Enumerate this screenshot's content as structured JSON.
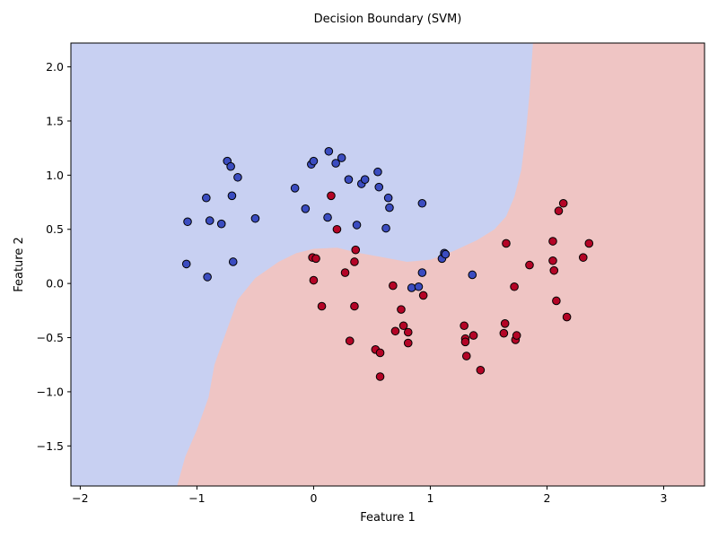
{
  "chart_data": {
    "type": "scatter",
    "title": "Decision Boundary (SVM)",
    "xlabel": "Feature 1",
    "ylabel": "Feature 2",
    "xlim": [
      -2.08,
      3.35
    ],
    "ylim": [
      -1.87,
      2.22
    ],
    "xticks": [
      -2,
      -1,
      0,
      1,
      2,
      3
    ],
    "yticks": [
      -1.5,
      -1.0,
      -0.5,
      0.0,
      0.5,
      1.0,
      1.5,
      2.0
    ],
    "xtick_labels": [
      "−2",
      "−1",
      "0",
      "1",
      "2",
      "3"
    ],
    "ytick_labels": [
      "−1.5",
      "−1.0",
      "−0.5",
      "0.0",
      "0.5",
      "1.0",
      "1.5",
      "2.0"
    ],
    "grid": false,
    "colors": {
      "class0_region": "#c8d0f2",
      "class1_region": "#efc5c4",
      "class0_point": "#3b4cc0",
      "class1_point": "#b40426",
      "edge": "#000000"
    },
    "decision_boundary": [
      [
        -1.17,
        -1.87
      ],
      [
        -1.1,
        -1.6
      ],
      [
        -1.0,
        -1.35
      ],
      [
        -0.9,
        -1.05
      ],
      [
        -0.85,
        -0.75
      ],
      [
        -0.75,
        -0.45
      ],
      [
        -0.65,
        -0.15
      ],
      [
        -0.5,
        0.05
      ],
      [
        -0.3,
        0.2
      ],
      [
        -0.15,
        0.28
      ],
      [
        0.0,
        0.32
      ],
      [
        0.2,
        0.33
      ],
      [
        0.4,
        0.28
      ],
      [
        0.6,
        0.24
      ],
      [
        0.8,
        0.2
      ],
      [
        1.0,
        0.22
      ],
      [
        1.2,
        0.3
      ],
      [
        1.4,
        0.4
      ],
      [
        1.55,
        0.5
      ],
      [
        1.65,
        0.62
      ],
      [
        1.72,
        0.8
      ],
      [
        1.78,
        1.05
      ],
      [
        1.82,
        1.4
      ],
      [
        1.85,
        1.75
      ],
      [
        1.88,
        2.22
      ]
    ],
    "series": [
      {
        "class": 0,
        "points": [
          [
            -1.08,
            0.57
          ],
          [
            -1.09,
            0.18
          ],
          [
            -0.92,
            0.79
          ],
          [
            -0.89,
            0.58
          ],
          [
            -0.91,
            0.06
          ],
          [
            -0.79,
            0.55
          ],
          [
            -0.74,
            1.13
          ],
          [
            -0.71,
            1.08
          ],
          [
            -0.7,
            0.81
          ],
          [
            -0.69,
            0.2
          ],
          [
            -0.65,
            0.98
          ],
          [
            -0.5,
            0.6
          ],
          [
            -0.16,
            0.88
          ],
          [
            -0.07,
            0.69
          ],
          [
            -0.02,
            1.1
          ],
          [
            0.0,
            1.13
          ],
          [
            0.13,
            1.22
          ],
          [
            0.19,
            1.11
          ],
          [
            0.24,
            1.16
          ],
          [
            0.12,
            0.61
          ],
          [
            0.3,
            0.96
          ],
          [
            0.37,
            0.54
          ],
          [
            0.41,
            0.92
          ],
          [
            0.44,
            0.96
          ],
          [
            0.55,
            1.03
          ],
          [
            0.56,
            0.89
          ],
          [
            0.64,
            0.79
          ],
          [
            0.65,
            0.7
          ],
          [
            0.62,
            0.51
          ],
          [
            0.93,
            0.74
          ],
          [
            1.1,
            0.23
          ],
          [
            1.12,
            0.28
          ],
          [
            1.13,
            0.27
          ],
          [
            0.93,
            0.1
          ],
          [
            0.84,
            -0.04
          ],
          [
            0.9,
            -0.03
          ],
          [
            1.36,
            0.08
          ]
        ]
      },
      {
        "class": 1,
        "points": [
          [
            0.15,
            0.81
          ],
          [
            0.2,
            0.5
          ],
          [
            -0.01,
            0.24
          ],
          [
            0.02,
            0.23
          ],
          [
            0.0,
            0.03
          ],
          [
            0.27,
            0.1
          ],
          [
            0.35,
            0.2
          ],
          [
            0.36,
            0.31
          ],
          [
            0.07,
            -0.21
          ],
          [
            0.35,
            -0.21
          ],
          [
            0.68,
            -0.02
          ],
          [
            0.75,
            -0.24
          ],
          [
            0.77,
            -0.39
          ],
          [
            0.81,
            -0.45
          ],
          [
            0.7,
            -0.44
          ],
          [
            0.81,
            -0.55
          ],
          [
            0.31,
            -0.53
          ],
          [
            0.53,
            -0.61
          ],
          [
            0.57,
            -0.64
          ],
          [
            0.57,
            -0.86
          ],
          [
            0.94,
            -0.11
          ],
          [
            1.29,
            -0.39
          ],
          [
            1.3,
            -0.51
          ],
          [
            1.3,
            -0.54
          ],
          [
            1.37,
            -0.48
          ],
          [
            1.31,
            -0.67
          ],
          [
            1.43,
            -0.8
          ],
          [
            1.64,
            -0.37
          ],
          [
            1.63,
            -0.46
          ],
          [
            1.73,
            -0.52
          ],
          [
            1.74,
            -0.48
          ],
          [
            1.72,
            -0.03
          ],
          [
            1.65,
            0.37
          ],
          [
            1.85,
            0.17
          ],
          [
            2.05,
            0.39
          ],
          [
            2.05,
            0.21
          ],
          [
            2.06,
            0.12
          ],
          [
            2.08,
            -0.16
          ],
          [
            2.1,
            0.67
          ],
          [
            2.14,
            0.74
          ],
          [
            2.17,
            -0.31
          ],
          [
            2.31,
            0.24
          ],
          [
            2.36,
            0.37
          ]
        ]
      }
    ]
  }
}
